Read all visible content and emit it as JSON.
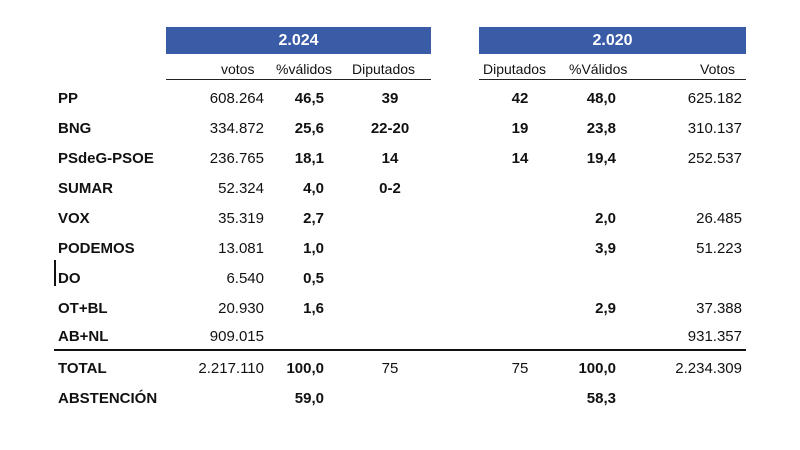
{
  "headers": {
    "year_2024": "2.024",
    "year_2020": "2.020"
  },
  "subheaders": {
    "votos": "votos",
    "pct_2024": "%válidos",
    "dip_2024": "Diputados",
    "dip_2020": "Diputados",
    "pct_2020": "%Válidos",
    "votos_2020": "Votos"
  },
  "rows": [
    {
      "party": "PP",
      "votos24": "608.264",
      "pct24": "46,5",
      "dip24": "39",
      "dip20": "42",
      "pct20": "48,0",
      "votos20": "625.182"
    },
    {
      "party": "BNG",
      "votos24": "334.872",
      "pct24": "25,6",
      "dip24": "22-20",
      "dip20": "19",
      "pct20": "23,8",
      "votos20": "310.137"
    },
    {
      "party": "PSdeG-PSOE",
      "votos24": "236.765",
      "pct24": "18,1",
      "dip24": "14",
      "dip20": "14",
      "pct20": "19,4",
      "votos20": "252.537"
    },
    {
      "party": "SUMAR",
      "votos24": "52.324",
      "pct24": "4,0",
      "dip24": "0-2",
      "dip20": "",
      "pct20": "",
      "votos20": ""
    },
    {
      "party": "VOX",
      "votos24": "35.319",
      "pct24": "2,7",
      "dip24": "",
      "dip20": "",
      "pct20": "2,0",
      "votos20": "26.485"
    },
    {
      "party": "PODEMOS",
      "votos24": "13.081",
      "pct24": "1,0",
      "dip24": "",
      "dip20": "",
      "pct20": "3,9",
      "votos20": "51.223"
    },
    {
      "party": "DO",
      "votos24": "6.540",
      "pct24": "0,5",
      "dip24": "",
      "dip20": "",
      "pct20": "",
      "votos20": ""
    },
    {
      "party": "OT+BL",
      "votos24": "20.930",
      "pct24": "1,6",
      "dip24": "",
      "dip20": "",
      "pct20": "2,9",
      "votos20": "37.388"
    },
    {
      "party": "AB+NL",
      "votos24": "909.015",
      "pct24": "",
      "dip24": "",
      "dip20": "",
      "pct20": "",
      "votos20": "931.357"
    }
  ],
  "total": {
    "party": "TOTAL",
    "votos24": "2.217.110",
    "pct24": "100,0",
    "dip24": "75",
    "dip20": "75",
    "pct20": "100,0",
    "votos20": "2.234.309"
  },
  "abstencion": {
    "party": "ABSTENCIÓN",
    "pct24": "59,0",
    "pct20": "58,3"
  },
  "colors": {
    "header_bg": "#3a5ba6",
    "header_text": "#ffffff"
  }
}
